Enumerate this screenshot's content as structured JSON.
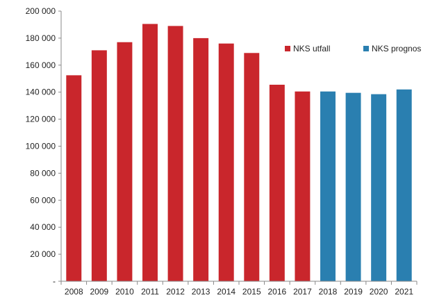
{
  "chart_data": {
    "type": "bar",
    "title": "",
    "xlabel": "",
    "ylabel": "",
    "categories": [
      "2008",
      "2009",
      "2010",
      "2011",
      "2012",
      "2013",
      "2014",
      "2015",
      "2016",
      "2017",
      "2018",
      "2019",
      "2020",
      "2021"
    ],
    "series": [
      {
        "name": "NKS utfall",
        "color": "#c9262c",
        "values": [
          152500,
          171000,
          177000,
          190500,
          189000,
          180000,
          176000,
          169000,
          145500,
          140500,
          null,
          null,
          null,
          null
        ]
      },
      {
        "name": "NKS prognos",
        "color": "#2a7fb0",
        "values": [
          null,
          null,
          null,
          null,
          null,
          null,
          null,
          null,
          null,
          null,
          140500,
          139500,
          138500,
          142000
        ]
      }
    ],
    "ylim": [
      0,
      200000
    ],
    "y_ticks": [
      0,
      20000,
      40000,
      60000,
      80000,
      100000,
      120000,
      140000,
      160000,
      180000,
      200000
    ],
    "y_tick_labels": [
      "-",
      "20 000",
      "40 000",
      "60 000",
      "80 000",
      "100 000",
      "120 000",
      "140 000",
      "160 000",
      "180 000",
      "200 000"
    ],
    "grid": false,
    "legend_position": "top-right"
  }
}
